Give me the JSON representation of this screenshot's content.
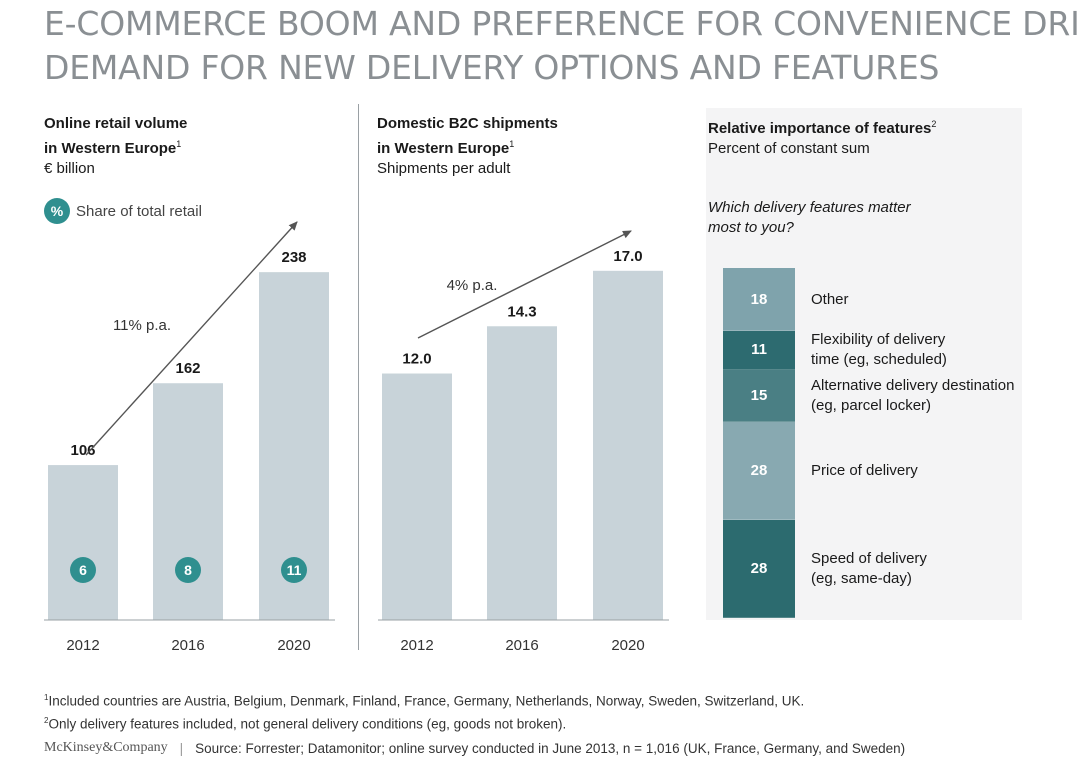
{
  "header": {
    "title_line1": "E-COMMERCE BOOM AND PREFERENCE FOR CONVENIENCE DRIVE",
    "title_line2": "DEMAND FOR NEW DELIVERY OPTIONS AND FEATURES"
  },
  "legend": {
    "badge_symbol": "%",
    "label": "Share of total retail"
  },
  "footnotes": {
    "note1_mark": "1",
    "note1": "Included countries are Austria, Belgium, Denmark, Finland, France, Germany, Netherlands, Norway, Sweden, Switzerland, UK.",
    "note2_mark": "2",
    "note2": "Only delivery features included, not general delivery conditions (eg, goods not broken)."
  },
  "footer": {
    "brand": "McKinsey&Company",
    "separator": "|",
    "source": "Source: Forrester; Datamonitor; online survey conducted in June 2013, n = 1,016 (UK, France, Germany, and Sweden)"
  },
  "colors": {
    "bar": "#c8d3d9",
    "badge": "#2f8f8f",
    "seg_other": "#7fa3ac",
    "seg_flex": "#2d6b70",
    "seg_alt": "#4a7f84",
    "seg_price": "#88a9b1",
    "seg_speed": "#2c6b6f"
  },
  "chart_data": [
    {
      "type": "bar",
      "title_line1": "Online retail volume",
      "title_line2": "in Western Europe",
      "title_sup": "1",
      "unit": "€ billion",
      "categories": [
        "2012",
        "2016",
        "2020"
      ],
      "values": [
        106,
        162,
        238
      ],
      "value_labels": [
        "106",
        "162",
        "238"
      ],
      "share_of_total_retail": [
        "6",
        "8",
        "11"
      ],
      "growth_label": "11% p.a.",
      "ylim": [
        0,
        260
      ]
    },
    {
      "type": "bar",
      "title_line1": "Domestic B2C shipments",
      "title_line2": "in Western Europe",
      "title_sup": "1",
      "unit": "Shipments per adult",
      "categories": [
        "2012",
        "2016",
        "2020"
      ],
      "values": [
        12.0,
        14.3,
        17.0
      ],
      "value_labels": [
        "12.0",
        "14.3",
        "17.0"
      ],
      "growth_label": "4% p.a.",
      "ylim": [
        0,
        18.5
      ]
    },
    {
      "type": "bar",
      "subtype": "stacked-100",
      "title": "Relative importance of features",
      "title_sup": "2",
      "unit": "Percent of constant sum",
      "question_line1": "Which delivery features matter",
      "question_line2": "most to you?",
      "segments": [
        {
          "value": 18,
          "label": "18",
          "text_line1": "Other",
          "text_line2": ""
        },
        {
          "value": 11,
          "label": "11",
          "text_line1": "Flexibility of delivery",
          "text_line2": "time (eg, scheduled)"
        },
        {
          "value": 15,
          "label": "15",
          "text_line1": "Alternative delivery destination",
          "text_line2": "(eg, parcel locker)"
        },
        {
          "value": 28,
          "label": "28",
          "text_line1": "Price of delivery",
          "text_line2": ""
        },
        {
          "value": 28,
          "label": "28",
          "text_line1": "Speed of delivery",
          "text_line2": "(eg, same-day)"
        }
      ]
    }
  ]
}
